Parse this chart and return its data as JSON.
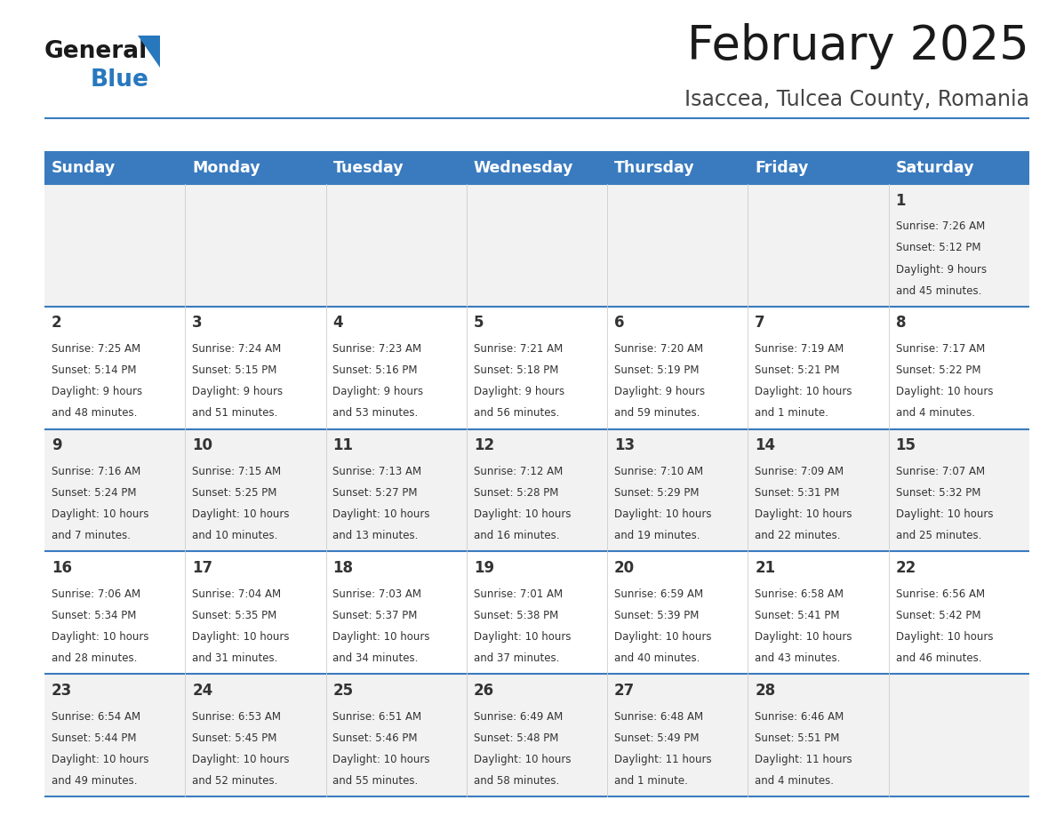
{
  "title": "February 2025",
  "subtitle": "Isaccea, Tulcea County, Romania",
  "header_bg": "#3a7bbf",
  "header_text_color": "#ffffff",
  "cell_bg_white": "#ffffff",
  "cell_bg_gray": "#f2f2f2",
  "day_headers": [
    "Sunday",
    "Monday",
    "Tuesday",
    "Wednesday",
    "Thursday",
    "Friday",
    "Saturday"
  ],
  "days": [
    {
      "day": 1,
      "col": 6,
      "row": 0,
      "sunrise": "7:26 AM",
      "sunset": "5:12 PM",
      "daylight_line1": "Daylight: 9 hours",
      "daylight_line2": "and 45 minutes."
    },
    {
      "day": 2,
      "col": 0,
      "row": 1,
      "sunrise": "7:25 AM",
      "sunset": "5:14 PM",
      "daylight_line1": "Daylight: 9 hours",
      "daylight_line2": "and 48 minutes."
    },
    {
      "day": 3,
      "col": 1,
      "row": 1,
      "sunrise": "7:24 AM",
      "sunset": "5:15 PM",
      "daylight_line1": "Daylight: 9 hours",
      "daylight_line2": "and 51 minutes."
    },
    {
      "day": 4,
      "col": 2,
      "row": 1,
      "sunrise": "7:23 AM",
      "sunset": "5:16 PM",
      "daylight_line1": "Daylight: 9 hours",
      "daylight_line2": "and 53 minutes."
    },
    {
      "day": 5,
      "col": 3,
      "row": 1,
      "sunrise": "7:21 AM",
      "sunset": "5:18 PM",
      "daylight_line1": "Daylight: 9 hours",
      "daylight_line2": "and 56 minutes."
    },
    {
      "day": 6,
      "col": 4,
      "row": 1,
      "sunrise": "7:20 AM",
      "sunset": "5:19 PM",
      "daylight_line1": "Daylight: 9 hours",
      "daylight_line2": "and 59 minutes."
    },
    {
      "day": 7,
      "col": 5,
      "row": 1,
      "sunrise": "7:19 AM",
      "sunset": "5:21 PM",
      "daylight_line1": "Daylight: 10 hours",
      "daylight_line2": "and 1 minute."
    },
    {
      "day": 8,
      "col": 6,
      "row": 1,
      "sunrise": "7:17 AM",
      "sunset": "5:22 PM",
      "daylight_line1": "Daylight: 10 hours",
      "daylight_line2": "and 4 minutes."
    },
    {
      "day": 9,
      "col": 0,
      "row": 2,
      "sunrise": "7:16 AM",
      "sunset": "5:24 PM",
      "daylight_line1": "Daylight: 10 hours",
      "daylight_line2": "and 7 minutes."
    },
    {
      "day": 10,
      "col": 1,
      "row": 2,
      "sunrise": "7:15 AM",
      "sunset": "5:25 PM",
      "daylight_line1": "Daylight: 10 hours",
      "daylight_line2": "and 10 minutes."
    },
    {
      "day": 11,
      "col": 2,
      "row": 2,
      "sunrise": "7:13 AM",
      "sunset": "5:27 PM",
      "daylight_line1": "Daylight: 10 hours",
      "daylight_line2": "and 13 minutes."
    },
    {
      "day": 12,
      "col": 3,
      "row": 2,
      "sunrise": "7:12 AM",
      "sunset": "5:28 PM",
      "daylight_line1": "Daylight: 10 hours",
      "daylight_line2": "and 16 minutes."
    },
    {
      "day": 13,
      "col": 4,
      "row": 2,
      "sunrise": "7:10 AM",
      "sunset": "5:29 PM",
      "daylight_line1": "Daylight: 10 hours",
      "daylight_line2": "and 19 minutes."
    },
    {
      "day": 14,
      "col": 5,
      "row": 2,
      "sunrise": "7:09 AM",
      "sunset": "5:31 PM",
      "daylight_line1": "Daylight: 10 hours",
      "daylight_line2": "and 22 minutes."
    },
    {
      "day": 15,
      "col": 6,
      "row": 2,
      "sunrise": "7:07 AM",
      "sunset": "5:32 PM",
      "daylight_line1": "Daylight: 10 hours",
      "daylight_line2": "and 25 minutes."
    },
    {
      "day": 16,
      "col": 0,
      "row": 3,
      "sunrise": "7:06 AM",
      "sunset": "5:34 PM",
      "daylight_line1": "Daylight: 10 hours",
      "daylight_line2": "and 28 minutes."
    },
    {
      "day": 17,
      "col": 1,
      "row": 3,
      "sunrise": "7:04 AM",
      "sunset": "5:35 PM",
      "daylight_line1": "Daylight: 10 hours",
      "daylight_line2": "and 31 minutes."
    },
    {
      "day": 18,
      "col": 2,
      "row": 3,
      "sunrise": "7:03 AM",
      "sunset": "5:37 PM",
      "daylight_line1": "Daylight: 10 hours",
      "daylight_line2": "and 34 minutes."
    },
    {
      "day": 19,
      "col": 3,
      "row": 3,
      "sunrise": "7:01 AM",
      "sunset": "5:38 PM",
      "daylight_line1": "Daylight: 10 hours",
      "daylight_line2": "and 37 minutes."
    },
    {
      "day": 20,
      "col": 4,
      "row": 3,
      "sunrise": "6:59 AM",
      "sunset": "5:39 PM",
      "daylight_line1": "Daylight: 10 hours",
      "daylight_line2": "and 40 minutes."
    },
    {
      "day": 21,
      "col": 5,
      "row": 3,
      "sunrise": "6:58 AM",
      "sunset": "5:41 PM",
      "daylight_line1": "Daylight: 10 hours",
      "daylight_line2": "and 43 minutes."
    },
    {
      "day": 22,
      "col": 6,
      "row": 3,
      "sunrise": "6:56 AM",
      "sunset": "5:42 PM",
      "daylight_line1": "Daylight: 10 hours",
      "daylight_line2": "and 46 minutes."
    },
    {
      "day": 23,
      "col": 0,
      "row": 4,
      "sunrise": "6:54 AM",
      "sunset": "5:44 PM",
      "daylight_line1": "Daylight: 10 hours",
      "daylight_line2": "and 49 minutes."
    },
    {
      "day": 24,
      "col": 1,
      "row": 4,
      "sunrise": "6:53 AM",
      "sunset": "5:45 PM",
      "daylight_line1": "Daylight: 10 hours",
      "daylight_line2": "and 52 minutes."
    },
    {
      "day": 25,
      "col": 2,
      "row": 4,
      "sunrise": "6:51 AM",
      "sunset": "5:46 PM",
      "daylight_line1": "Daylight: 10 hours",
      "daylight_line2": "and 55 minutes."
    },
    {
      "day": 26,
      "col": 3,
      "row": 4,
      "sunrise": "6:49 AM",
      "sunset": "5:48 PM",
      "daylight_line1": "Daylight: 10 hours",
      "daylight_line2": "and 58 minutes."
    },
    {
      "day": 27,
      "col": 4,
      "row": 4,
      "sunrise": "6:48 AM",
      "sunset": "5:49 PM",
      "daylight_line1": "Daylight: 11 hours",
      "daylight_line2": "and 1 minute."
    },
    {
      "day": 28,
      "col": 5,
      "row": 4,
      "sunrise": "6:46 AM",
      "sunset": "5:51 PM",
      "daylight_line1": "Daylight: 11 hours",
      "daylight_line2": "and 4 minutes."
    }
  ],
  "num_rows": 5
}
